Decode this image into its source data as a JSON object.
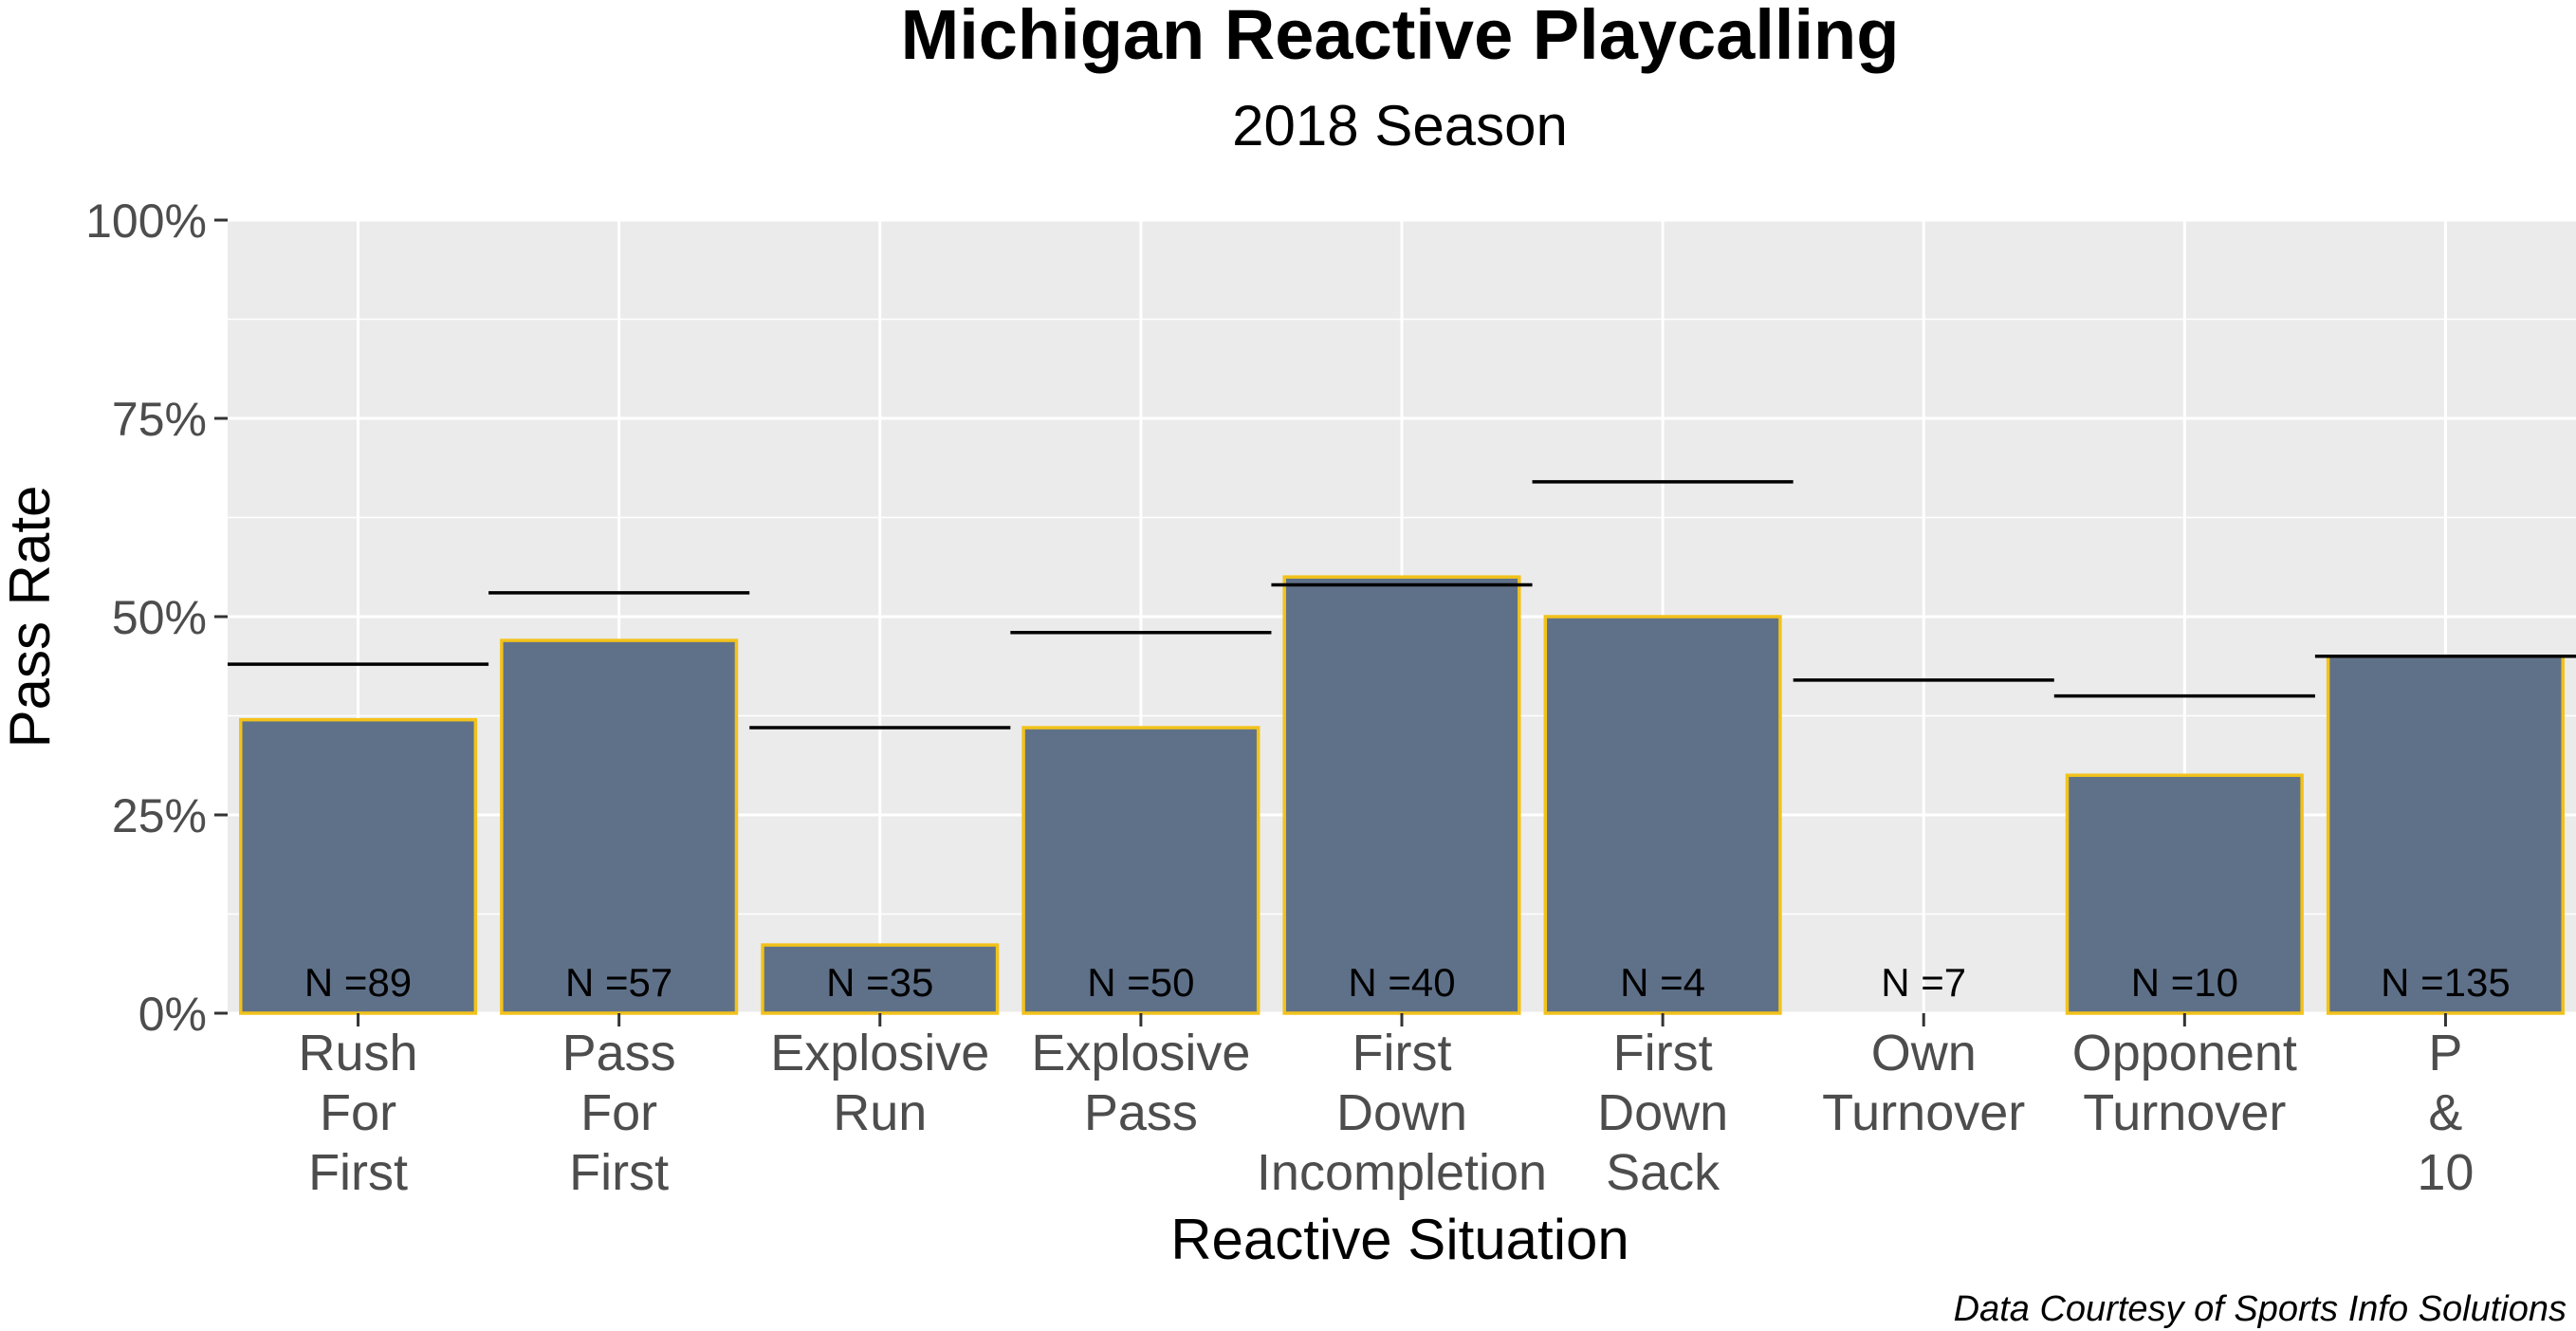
{
  "chart_data": {
    "type": "bar",
    "title": "Michigan Reactive Playcalling",
    "subtitle": "2018 Season",
    "xlabel": "Reactive Situation",
    "ylabel": "Pass Rate",
    "caption": "Data Courtesy of Sports Info Solutions",
    "ylim": [
      0,
      1
    ],
    "y_ticks": [
      0,
      0.25,
      0.5,
      0.75,
      1.0
    ],
    "y_tick_labels": [
      "0%",
      "25%",
      "50%",
      "75%",
      "100%"
    ],
    "grid": true,
    "categories": [
      "Rush For First",
      "Pass For First",
      "Explosive Run",
      "Explosive Pass",
      "First Down Incompletion",
      "First Down Sack",
      "Own Turnover",
      "Opponent Turnover",
      "P & 10"
    ],
    "category_label_lines": [
      [
        "Rush",
        "For",
        "First"
      ],
      [
        "Pass",
        "For",
        "First"
      ],
      [
        "Explosive",
        "Run"
      ],
      [
        "Explosive",
        "Pass"
      ],
      [
        "First",
        "Down",
        "Incompletion"
      ],
      [
        "First",
        "Down",
        "Sack"
      ],
      [
        "Own",
        "Turnover"
      ],
      [
        "Opponent",
        "Turnover"
      ],
      [
        "P",
        "&",
        "10"
      ]
    ],
    "values": [
      0.37,
      0.47,
      0.086,
      0.36,
      0.55,
      0.5,
      0.0,
      0.3,
      0.45
    ],
    "reference_values": [
      0.44,
      0.53,
      0.36,
      0.48,
      0.54,
      0.67,
      0.42,
      0.4,
      0.45
    ],
    "n_labels": [
      "N =89",
      "N =57",
      "N =35",
      "N =50",
      "N =40",
      "N =4",
      "N =7",
      "N =10",
      "N =135"
    ],
    "colors": {
      "bar_fill": "#5f7189",
      "bar_outline": "#f2c21b",
      "panel_bg": "#ebebeb",
      "grid": "#ffffff",
      "reference_line": "#000000"
    }
  }
}
